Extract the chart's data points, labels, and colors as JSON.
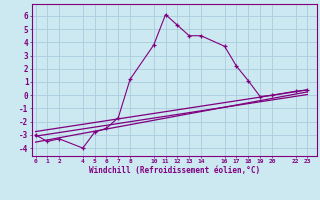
{
  "main_x": [
    0,
    1,
    2,
    4,
    5,
    6,
    7,
    8,
    10,
    11,
    12,
    13,
    14,
    16,
    17,
    18,
    19,
    20,
    22,
    23
  ],
  "main_y": [
    -3.0,
    -3.5,
    -3.3,
    -4.0,
    -2.8,
    -2.5,
    -1.7,
    1.2,
    3.8,
    6.1,
    5.3,
    4.5,
    4.5,
    3.7,
    2.2,
    1.1,
    -0.1,
    0.0,
    0.3,
    0.4
  ],
  "line1_x": [
    0,
    23
  ],
  "line1_y": [
    -3.55,
    0.25
  ],
  "line2_x": [
    0,
    23
  ],
  "line2_y": [
    -3.1,
    0.05
  ],
  "line3_x": [
    0,
    23
  ],
  "line3_y": [
    -2.75,
    0.4
  ],
  "color": "#800080",
  "bg_color": "#cce8f0",
  "grid_color": "#aaccdd",
  "xlabel": "Windchill (Refroidissement éolien,°C)",
  "xticks": [
    0,
    1,
    2,
    4,
    5,
    6,
    7,
    8,
    10,
    11,
    12,
    13,
    14,
    16,
    17,
    18,
    19,
    20,
    22,
    23
  ],
  "xtick_labels": [
    "0",
    "1",
    "2",
    "4",
    "5",
    "6",
    "7",
    "8",
    "10",
    "11",
    "12",
    "13",
    "14",
    "16",
    "17",
    "18",
    "19",
    "20",
    "22",
    "23"
  ],
  "yticks": [
    -4,
    -3,
    -2,
    -1,
    0,
    1,
    2,
    3,
    4,
    5,
    6
  ],
  "ylim": [
    -4.6,
    6.9
  ],
  "xlim": [
    -0.3,
    23.8
  ]
}
